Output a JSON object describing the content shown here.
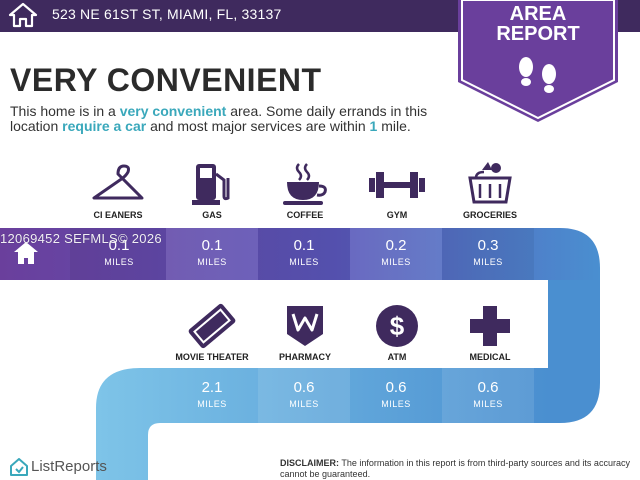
{
  "header": {
    "address": "523 NE 61ST ST, MIAMI, FL, 33137",
    "badge_line1": "AREA",
    "badge_line2": "REPORT"
  },
  "headline": "VERY CONVENIENT",
  "description": {
    "p1": "This home is in a ",
    "h1": "very convenient",
    "p2": " area. Some daily errands in this location ",
    "h2": "require a car",
    "p3": " and most major services are within ",
    "h3": "1",
    "p4": " mile."
  },
  "row1": [
    {
      "label": "CI EANERS",
      "value": "0.1",
      "unit": "MILES",
      "icon": "hanger-icon"
    },
    {
      "label": "GAS",
      "value": "0.1",
      "unit": "MILES",
      "icon": "gas-pump-icon"
    },
    {
      "label": "COFFEE",
      "value": "0.1",
      "unit": "MILES",
      "icon": "coffee-cup-icon"
    },
    {
      "label": "GYM",
      "value": "0.2",
      "unit": "MILES",
      "icon": "dumbbell-icon"
    },
    {
      "label": "GROCERIES",
      "value": "0.3",
      "unit": "MILES",
      "icon": "grocery-basket-icon"
    }
  ],
  "row2": [
    {
      "label": "MOVIE THEATER",
      "value": "2.1",
      "unit": "MILES",
      "icon": "ticket-icon"
    },
    {
      "label": "PHARMACY",
      "value": "0.6",
      "unit": "MILES",
      "icon": "pharmacy-logo-icon"
    },
    {
      "label": "ATM",
      "value": "0.6",
      "unit": "MILES",
      "icon": "dollar-icon"
    },
    {
      "label": "MEDICAL",
      "value": "0.6",
      "unit": "MILES",
      "icon": "medical-cross-icon"
    }
  ],
  "watermark": "12069452 SEFMLS© 2026",
  "footer": {
    "brand": "ListReports",
    "disclaimer_label": "DISCLAIMER:",
    "disclaimer_text": " The information in this report is from third-party sources and its accuracy cannot be guaranteed."
  },
  "colors": {
    "header": "#3f2a5e",
    "badge": "#6a3f9c",
    "accent_text": "#3aa8bb",
    "band_purple": "#6a3f9c",
    "band_blue": "#4a8fd0",
    "band_light": "#7ec4e8"
  }
}
